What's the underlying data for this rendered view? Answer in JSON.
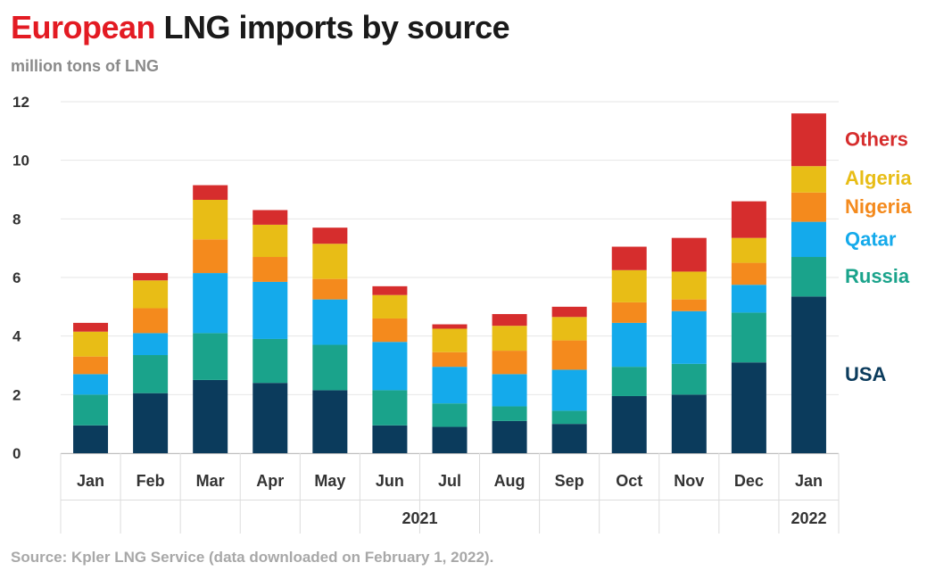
{
  "title": {
    "accent": "European",
    "rest": " LNG imports by source"
  },
  "subtitle": "million tons of LNG",
  "source": "Source: Kpler LNG Service (data downloaded on February 1, 2022).",
  "chart_data": {
    "type": "bar",
    "stacked": true,
    "categories": [
      "Jan",
      "Feb",
      "Mar",
      "Apr",
      "May",
      "Jun",
      "Jul",
      "Aug",
      "Sep",
      "Oct",
      "Nov",
      "Dec",
      "Jan"
    ],
    "year_groups": [
      {
        "label": "2021",
        "from": 0,
        "to": 11
      },
      {
        "label": "2022",
        "from": 12,
        "to": 12
      }
    ],
    "ylim": [
      0,
      12
    ],
    "yticks": [
      0,
      2,
      4,
      6,
      8,
      10,
      12
    ],
    "legend_placement": "right, labels next to last bar",
    "series": [
      {
        "name": "USA",
        "color": "#0b3b5c",
        "values": [
          0.95,
          2.05,
          2.5,
          2.4,
          2.15,
          0.95,
          0.9,
          1.1,
          1.0,
          1.95,
          2.0,
          3.1,
          5.35
        ]
      },
      {
        "name": "Russia",
        "color": "#1aa38b",
        "values": [
          1.05,
          1.3,
          1.6,
          1.5,
          1.55,
          1.2,
          0.8,
          0.5,
          0.45,
          1.0,
          1.05,
          1.7,
          1.35
        ]
      },
      {
        "name": "Qatar",
        "color": "#14aaeb",
        "values": [
          0.7,
          0.75,
          2.05,
          1.95,
          1.55,
          1.65,
          1.25,
          1.1,
          1.4,
          1.5,
          1.8,
          0.95,
          1.2
        ]
      },
      {
        "name": "Nigeria",
        "color": "#f48a1d",
        "values": [
          0.6,
          0.85,
          1.15,
          0.85,
          0.7,
          0.8,
          0.5,
          0.8,
          1.0,
          0.7,
          0.4,
          0.75,
          1.0
        ]
      },
      {
        "name": "Algeria",
        "color": "#e8bd16",
        "values": [
          0.85,
          0.95,
          1.35,
          1.1,
          1.2,
          0.8,
          0.8,
          0.85,
          0.8,
          1.1,
          0.95,
          0.85,
          0.9
        ]
      },
      {
        "name": "Others",
        "color": "#d62d2d",
        "values": [
          0.3,
          0.25,
          0.5,
          0.5,
          0.55,
          0.3,
          0.15,
          0.4,
          0.35,
          0.8,
          1.15,
          1.25,
          1.8
        ]
      }
    ]
  }
}
